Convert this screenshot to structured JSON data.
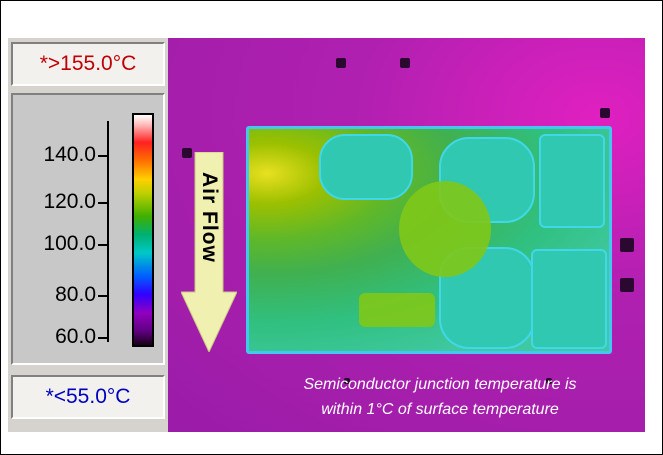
{
  "scale": {
    "max_readout": "*>155.0°C",
    "min_readout": "*<55.0°C",
    "max_color": "#c00000",
    "min_color": "#0000c0",
    "ticks": [
      "140.0",
      "120.0",
      "100.0",
      "80.0",
      "60.0"
    ]
  },
  "arrow": {
    "label": "Air Flow",
    "color": "#f0f0b0"
  },
  "caption": {
    "line1": "Semiconductor junction temperature is",
    "line2": "within 1°C of surface temperature"
  }
}
